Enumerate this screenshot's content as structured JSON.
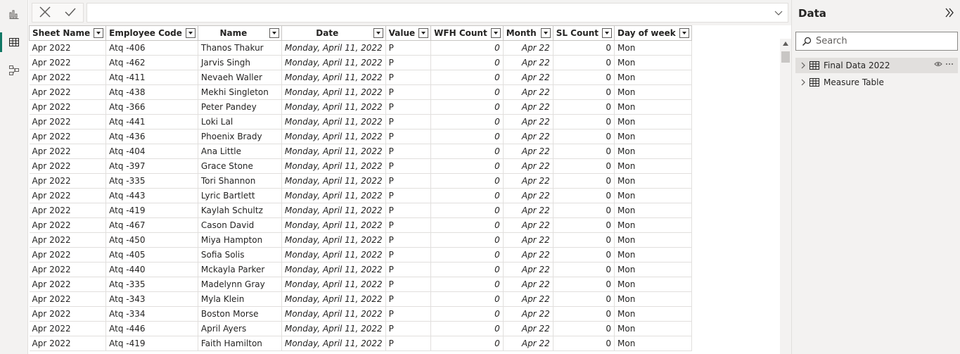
{
  "formula_bar": {
    "value": ""
  },
  "columns": [
    {
      "key": "sheet",
      "label": "Sheet Name"
    },
    {
      "key": "code",
      "label": "Employee Code"
    },
    {
      "key": "name",
      "label": "Name"
    },
    {
      "key": "date",
      "label": "Date"
    },
    {
      "key": "value",
      "label": "Value"
    },
    {
      "key": "wfh",
      "label": "WFH Count"
    },
    {
      "key": "month",
      "label": "Month"
    },
    {
      "key": "sl",
      "label": "SL Count"
    },
    {
      "key": "dow",
      "label": "Day of week"
    }
  ],
  "rows": [
    [
      "Apr 2022",
      "Atq -406",
      "Thanos Thakur",
      "Monday, April 11, 2022",
      "P",
      "0",
      "Apr 22",
      "0",
      "Mon"
    ],
    [
      "Apr 2022",
      "Atq -462",
      "Jarvis Singh",
      "Monday, April 11, 2022",
      "P",
      "0",
      "Apr 22",
      "0",
      "Mon"
    ],
    [
      "Apr 2022",
      "Atq -411",
      "Nevaeh Waller",
      "Monday, April 11, 2022",
      "P",
      "0",
      "Apr 22",
      "0",
      "Mon"
    ],
    [
      "Apr 2022",
      "Atq -438",
      "Mekhi Singleton",
      "Monday, April 11, 2022",
      "P",
      "0",
      "Apr 22",
      "0",
      "Mon"
    ],
    [
      "Apr 2022",
      "Atq -366",
      "Peter Pandey",
      "Monday, April 11, 2022",
      "P",
      "0",
      "Apr 22",
      "0",
      "Mon"
    ],
    [
      "Apr 2022",
      "Atq -441",
      "Loki Lal",
      "Monday, April 11, 2022",
      "P",
      "0",
      "Apr 22",
      "0",
      "Mon"
    ],
    [
      "Apr 2022",
      "Atq -436",
      "Phoenix Brady",
      "Monday, April 11, 2022",
      "P",
      "0",
      "Apr 22",
      "0",
      "Mon"
    ],
    [
      "Apr 2022",
      "Atq -404",
      "Ana Little",
      "Monday, April 11, 2022",
      "P",
      "0",
      "Apr 22",
      "0",
      "Mon"
    ],
    [
      "Apr 2022",
      "Atq -397",
      "Grace Stone",
      "Monday, April 11, 2022",
      "P",
      "0",
      "Apr 22",
      "0",
      "Mon"
    ],
    [
      "Apr 2022",
      "Atq -335",
      "Tori Shannon",
      "Monday, April 11, 2022",
      "P",
      "0",
      "Apr 22",
      "0",
      "Mon"
    ],
    [
      "Apr 2022",
      "Atq -443",
      "Lyric Bartlett",
      "Monday, April 11, 2022",
      "P",
      "0",
      "Apr 22",
      "0",
      "Mon"
    ],
    [
      "Apr 2022",
      "Atq -419",
      "Kaylah Schultz",
      "Monday, April 11, 2022",
      "P",
      "0",
      "Apr 22",
      "0",
      "Mon"
    ],
    [
      "Apr 2022",
      "Atq -467",
      "Cason David",
      "Monday, April 11, 2022",
      "P",
      "0",
      "Apr 22",
      "0",
      "Mon"
    ],
    [
      "Apr 2022",
      "Atq -450",
      "Miya Hampton",
      "Monday, April 11, 2022",
      "P",
      "0",
      "Apr 22",
      "0",
      "Mon"
    ],
    [
      "Apr 2022",
      "Atq -405",
      "Sofia Solis",
      "Monday, April 11, 2022",
      "P",
      "0",
      "Apr 22",
      "0",
      "Mon"
    ],
    [
      "Apr 2022",
      "Atq -440",
      "Mckayla Parker",
      "Monday, April 11, 2022",
      "P",
      "0",
      "Apr 22",
      "0",
      "Mon"
    ],
    [
      "Apr 2022",
      "Atq -335",
      "Madelynn Gray",
      "Monday, April 11, 2022",
      "P",
      "0",
      "Apr 22",
      "0",
      "Mon"
    ],
    [
      "Apr 2022",
      "Atq -343",
      "Myla Klein",
      "Monday, April 11, 2022",
      "P",
      "0",
      "Apr 22",
      "0",
      "Mon"
    ],
    [
      "Apr 2022",
      "Atq -334",
      "Boston Morse",
      "Monday, April 11, 2022",
      "P",
      "0",
      "Apr 22",
      "0",
      "Mon"
    ],
    [
      "Apr 2022",
      "Atq -446",
      "April Ayers",
      "Monday, April 11, 2022",
      "P",
      "0",
      "Apr 22",
      "0",
      "Mon"
    ],
    [
      "Apr 2022",
      "Atq -419",
      "Faith Hamilton",
      "Monday, April 11, 2022",
      "P",
      "0",
      "Apr 22",
      "0",
      "Mon"
    ]
  ],
  "data_pane": {
    "title": "Data",
    "search_placeholder": "Search",
    "tables": [
      {
        "label": "Final Data 2022",
        "selected": true
      },
      {
        "label": "Measure Table",
        "selected": false
      }
    ]
  },
  "icons": {
    "rail": [
      "report-view-icon",
      "table-view-icon",
      "model-view-icon"
    ],
    "formula": [
      "cancel-icon",
      "commit-check-icon",
      "expand-chevron-icon"
    ]
  },
  "colors": {
    "accent": "#117865",
    "header_border": "#c8c6c4",
    "pane_bg": "#f3f2f1"
  }
}
